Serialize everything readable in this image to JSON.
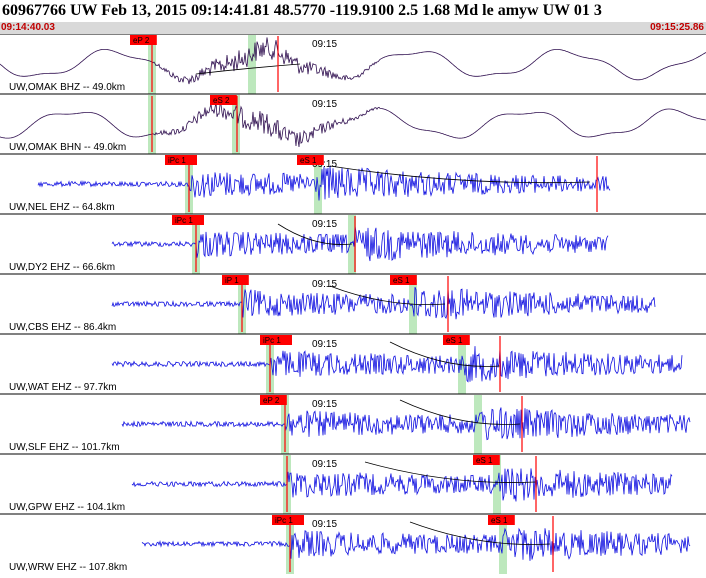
{
  "header": {
    "title": "60967766 UW Feb 13, 2015 09:14:41.81    48.5770 -119.9100  2.5 1.68 Md le amyw UW 01    3",
    "start_time": "09:14:40.03",
    "end_time": "09:15:25.86",
    "minute_label": "09:15"
  },
  "colors": {
    "trace_blue": "#1010e0",
    "trace_dark": "#301050",
    "pick_red": "#ff0000",
    "pick_window": "#bde8bd",
    "travel_curve": "#000000",
    "time_text": "#c00000"
  },
  "traces": [
    {
      "label": "UW,OMAK BHZ -- 49.0km",
      "color": "trace_dark",
      "type": "lowfreq",
      "p_pick": "eP 2",
      "s_pick": ""
    },
    {
      "label": "UW,OMAK BHN -- 49.0km",
      "color": "trace_dark",
      "type": "lowfreq",
      "p_pick": "",
      "s_pick": "eS 2"
    },
    {
      "label": "UW,NEL EHZ -- 64.8km",
      "color": "trace_blue",
      "type": "hf",
      "p_pick": "iPc 1",
      "s_pick": "eS 1"
    },
    {
      "label": "UW,DY2 EHZ -- 66.6km",
      "color": "trace_blue",
      "type": "hf",
      "p_pick": "iPc 1",
      "s_pick": ""
    },
    {
      "label": "UW,CBS EHZ -- 86.4km",
      "color": "trace_blue",
      "type": "hf",
      "p_pick": "iP 1",
      "s_pick": "eS 1"
    },
    {
      "label": "UW,WAT EHZ -- 97.7km",
      "color": "trace_blue",
      "type": "hf",
      "p_pick": "iPc 1",
      "s_pick": "eS 1"
    },
    {
      "label": "UW,SLF EHZ -- 101.7km",
      "color": "trace_blue",
      "type": "hf",
      "p_pick": "eP 2",
      "s_pick": ""
    },
    {
      "label": "UW,GPW EHZ -- 104.1km",
      "color": "trace_blue",
      "type": "hf",
      "p_pick": "",
      "s_pick": "eS 1"
    },
    {
      "label": "UW,WRW EHZ -- 107.8km",
      "color": "trace_blue",
      "type": "hf",
      "p_pick": "iPc 1",
      "s_pick": "eS 1"
    }
  ]
}
